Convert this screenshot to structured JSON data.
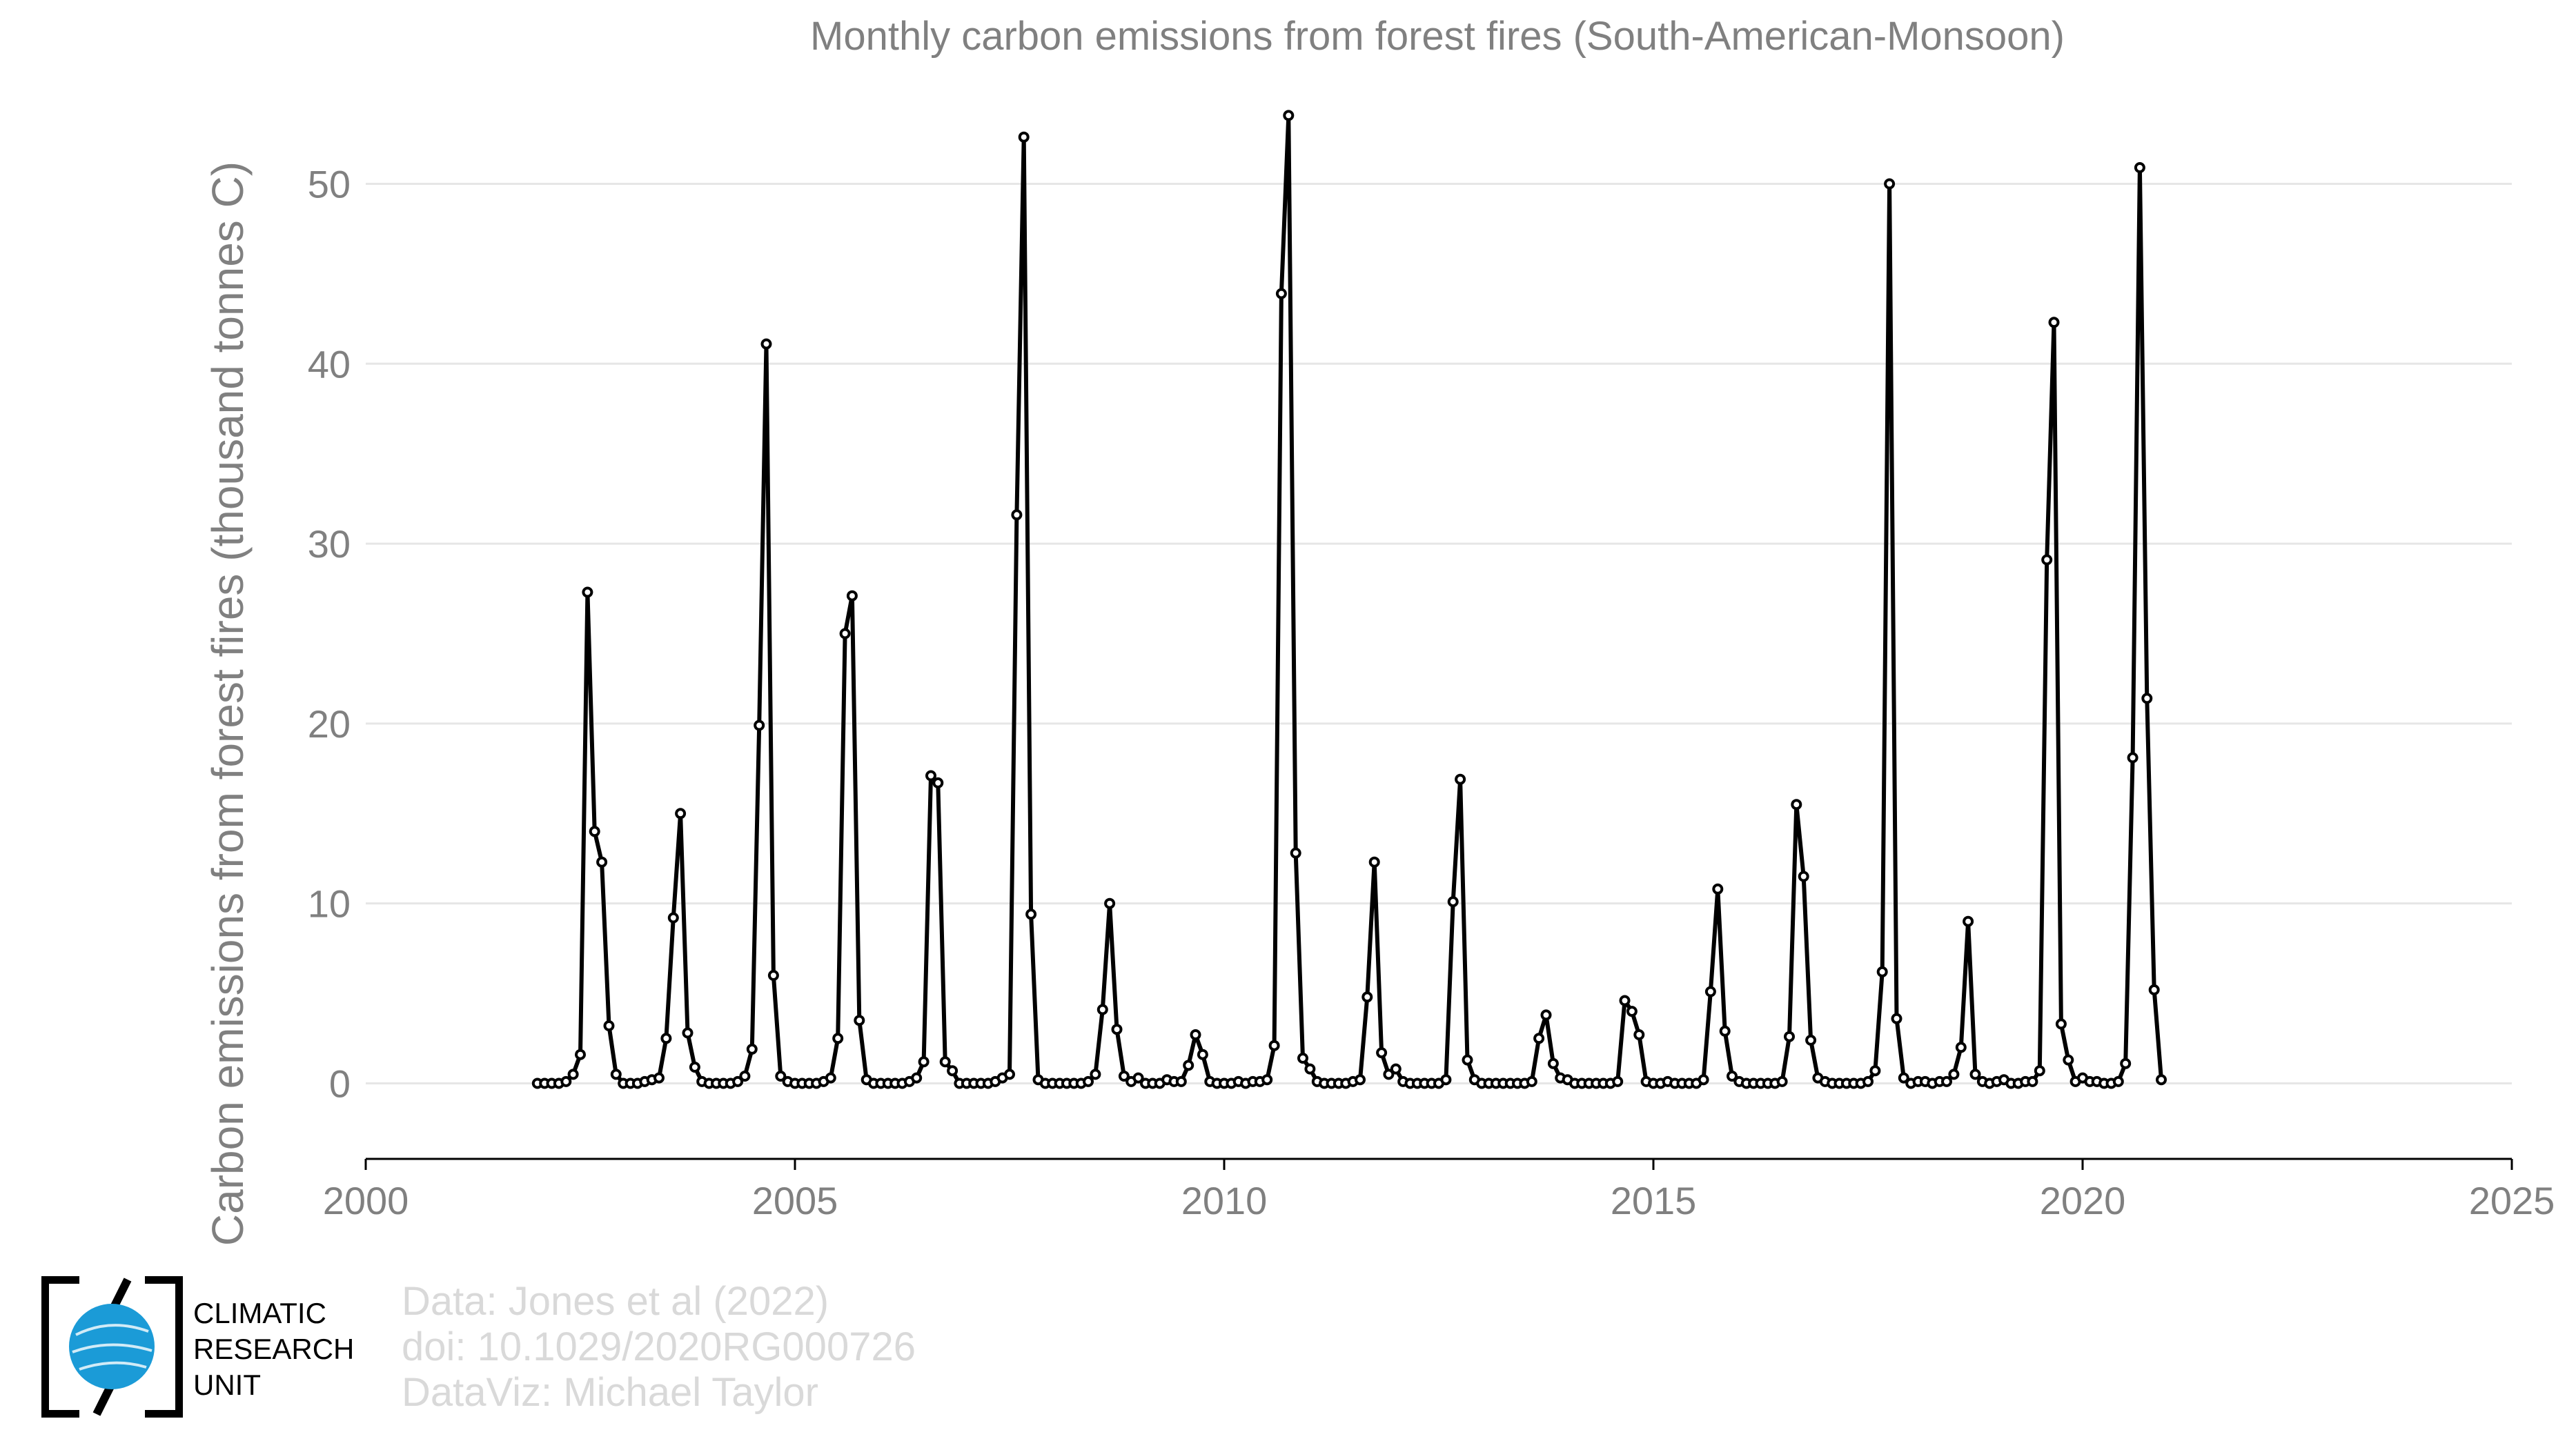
{
  "chart_data": {
    "type": "line",
    "title": "Monthly carbon emissions from forest fires (South-American-Monsoon)",
    "xlabel": "",
    "ylabel": "Carbon emissions from forest fires (thousand tonnes C)",
    "xlim": [
      2000,
      2025
    ],
    "ylim": [
      -4.2,
      56
    ],
    "xticks": [
      "2000",
      "2005",
      "2010",
      "2015",
      "2020",
      "2025"
    ],
    "yticks": [
      "0",
      "10",
      "20",
      "30",
      "40",
      "50"
    ],
    "grid": true,
    "start": "2002-01",
    "series": [
      {
        "values": [
          0,
          0,
          0,
          0,
          0.1,
          0.5,
          1.6,
          27.3,
          14.0,
          12.3,
          3.2,
          0.5,
          0,
          0,
          0,
          0.1,
          0.2,
          0.3,
          2.5,
          9.2,
          15.0,
          2.8,
          0.9,
          0.1,
          0,
          0,
          0,
          0,
          0.1,
          0.4,
          1.9,
          19.9,
          41.1,
          6.0,
          0.4,
          0.1,
          0,
          0,
          0,
          0,
          0.1,
          0.3,
          2.5,
          25.0,
          27.1,
          3.5,
          0.2,
          0,
          0,
          0,
          0,
          0,
          0.1,
          0.3,
          1.2,
          17.1,
          16.7,
          1.2,
          0.7,
          0,
          0,
          0,
          0,
          0,
          0.1,
          0.3,
          0.5,
          31.6,
          52.6,
          9.4,
          0.2,
          0,
          0,
          0,
          0,
          0,
          0,
          0.1,
          0.5,
          4.1,
          10.0,
          3.0,
          0.4,
          0.1,
          0.3,
          0,
          0,
          0,
          0.2,
          0.1,
          0.1,
          1.0,
          2.7,
          1.6,
          0.1,
          0,
          0,
          0,
          0.1,
          0,
          0.1,
          0.1,
          0.2,
          2.1,
          43.9,
          53.8,
          12.8,
          1.4,
          0.8,
          0.1,
          0,
          0,
          0,
          0,
          0.1,
          0.2,
          4.8,
          12.3,
          1.7,
          0.5,
          0.8,
          0.1,
          0,
          0,
          0,
          0,
          0,
          0.2,
          10.1,
          16.9,
          1.3,
          0.2,
          0,
          0,
          0,
          0,
          0,
          0,
          0,
          0.1,
          2.5,
          3.8,
          1.1,
          0.3,
          0.2,
          0,
          0,
          0,
          0,
          0,
          0,
          0.1,
          4.6,
          4.0,
          2.7,
          0.1,
          0,
          0,
          0.1,
          0,
          0,
          0,
          0,
          0.2,
          5.1,
          10.8,
          2.9,
          0.4,
          0.1,
          0,
          0,
          0,
          0,
          0,
          0.1,
          2.6,
          15.5,
          11.5,
          2.4,
          0.3,
          0.1,
          0,
          0,
          0,
          0,
          0,
          0.1,
          0.7,
          6.2,
          50.0,
          3.6,
          0.3,
          0,
          0.1,
          0.1,
          0,
          0.1,
          0.1,
          0.5,
          2.0,
          9.0,
          0.5,
          0.1,
          0,
          0.1,
          0.2,
          0,
          0,
          0.1,
          0.1,
          0.7,
          29.1,
          42.3,
          3.3,
          1.3,
          0.1,
          0.3,
          0.1,
          0.1,
          0,
          0,
          0.1,
          1.1,
          18.1,
          50.9,
          21.4,
          5.2,
          0.2
        ]
      }
    ]
  },
  "credits": {
    "line1": "Data: Jones et al (2022)",
    "line2": "doi: 10.1029/2020RG000726",
    "line3": "DataViz: Michael Taylor"
  },
  "logo": {
    "line1": "CLIMATIC",
    "line2": "RESEARCH",
    "line3": "UNIT"
  },
  "colors": {
    "line": "#000000",
    "marker_fill": "#ffffff",
    "grid": "#e6e6e6",
    "text": "#808080",
    "credit": "#d9d9d9",
    "logo_globe": "#1b9bd7"
  }
}
